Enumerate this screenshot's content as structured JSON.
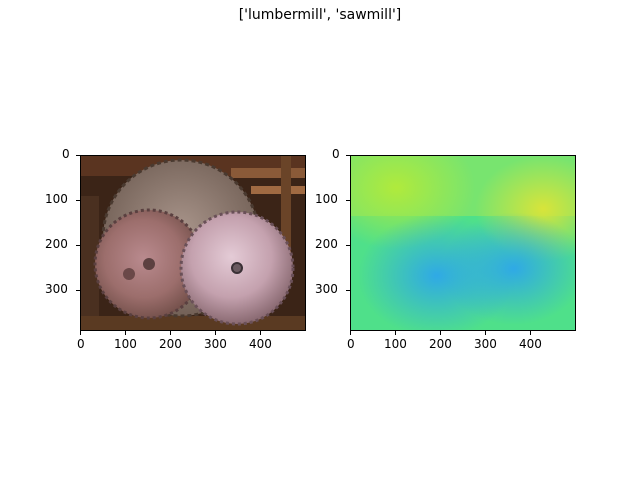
{
  "figure": {
    "title": "['lumbermill', 'sawmill']"
  },
  "left_panel": {
    "image_desc": "photo-of-saw-blades",
    "x_ticks": [
      "0",
      "100",
      "200",
      "300",
      "400"
    ],
    "y_ticks": [
      "0",
      "100",
      "200",
      "300"
    ]
  },
  "right_panel": {
    "image_desc": "heatmap-visualization",
    "x_ticks": [
      "0",
      "100",
      "200",
      "300",
      "400"
    ],
    "y_ticks": [
      "0",
      "100",
      "200",
      "300"
    ]
  },
  "colors": {
    "heat_low": "#2fa9e6",
    "heat_mid": "#4fe08a",
    "heat_high": "#c8e832"
  }
}
